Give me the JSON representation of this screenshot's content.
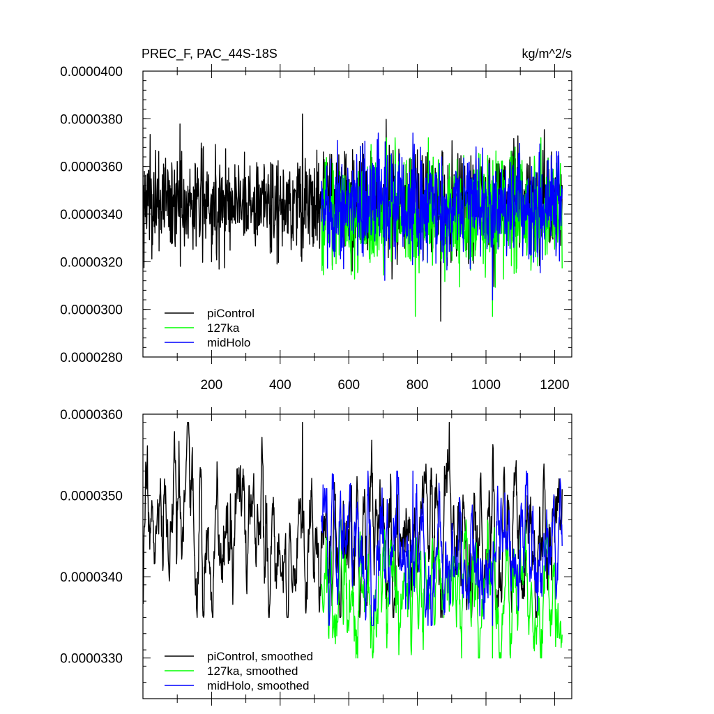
{
  "chart_data": [
    {
      "type": "line",
      "title": "PREC_F, PAC_44S-18S",
      "units": "kg/m^2/s",
      "xlim": [
        0,
        1250
      ],
      "ylim": [
        2.8e-05,
        4e-05
      ],
      "x_ticks": [
        200,
        400,
        600,
        800,
        1000,
        1200
      ],
      "y_ticks": [
        "0.0000280",
        "0.0000300",
        "0.0000320",
        "0.0000340",
        "0.0000360",
        "0.0000380",
        "0.0000400"
      ],
      "legend_position": "bottom-left",
      "series": [
        {
          "name": "piControl",
          "color": "#000000",
          "x_range": [
            1,
            1222
          ],
          "mean": 3.45e-05,
          "typical_range": [
            3.25e-05,
            3.62e-05
          ],
          "min": 2.95e-05,
          "max": 3.82e-05
        },
        {
          "name": "127ka",
          "color": "#00ff00",
          "x_range": [
            520,
            1222
          ],
          "mean": 3.4e-05,
          "typical_range": [
            3.2e-05,
            3.6e-05
          ],
          "min": 2.97e-05,
          "max": 3.72e-05
        },
        {
          "name": "midHolo",
          "color": "#0000ff",
          "x_range": [
            520,
            1222
          ],
          "mean": 3.44e-05,
          "typical_range": [
            3.25e-05,
            3.62e-05
          ],
          "min": 3.04e-05,
          "max": 3.74e-05
        }
      ]
    },
    {
      "type": "line",
      "xlim": [
        0,
        1250
      ],
      "ylim": [
        3.25e-05,
        3.6e-05
      ],
      "y_ticks": [
        "0.0000330",
        "0.0000340",
        "0.0000350",
        "0.0000360"
      ],
      "legend_position": "bottom-left",
      "series": [
        {
          "name": "piControl, smoothed",
          "color": "#000000",
          "x_range": [
            1,
            1222
          ],
          "mean": 3.45e-05,
          "typical_range": [
            3.38e-05,
            3.52e-05
          ],
          "min": 3.35e-05,
          "max": 3.59e-05
        },
        {
          "name": "127ka, smoothed",
          "color": "#00ff00",
          "x_range": [
            520,
            1222
          ],
          "mean": 3.38e-05,
          "typical_range": [
            3.33e-05,
            3.44e-05
          ],
          "min": 3.3e-05,
          "max": 3.47e-05
        },
        {
          "name": "midHolo, smoothed",
          "color": "#0000ff",
          "x_range": [
            520,
            1222
          ],
          "mean": 3.43e-05,
          "typical_range": [
            3.37e-05,
            3.49e-05
          ],
          "min": 3.34e-05,
          "max": 3.53e-05
        }
      ]
    }
  ]
}
